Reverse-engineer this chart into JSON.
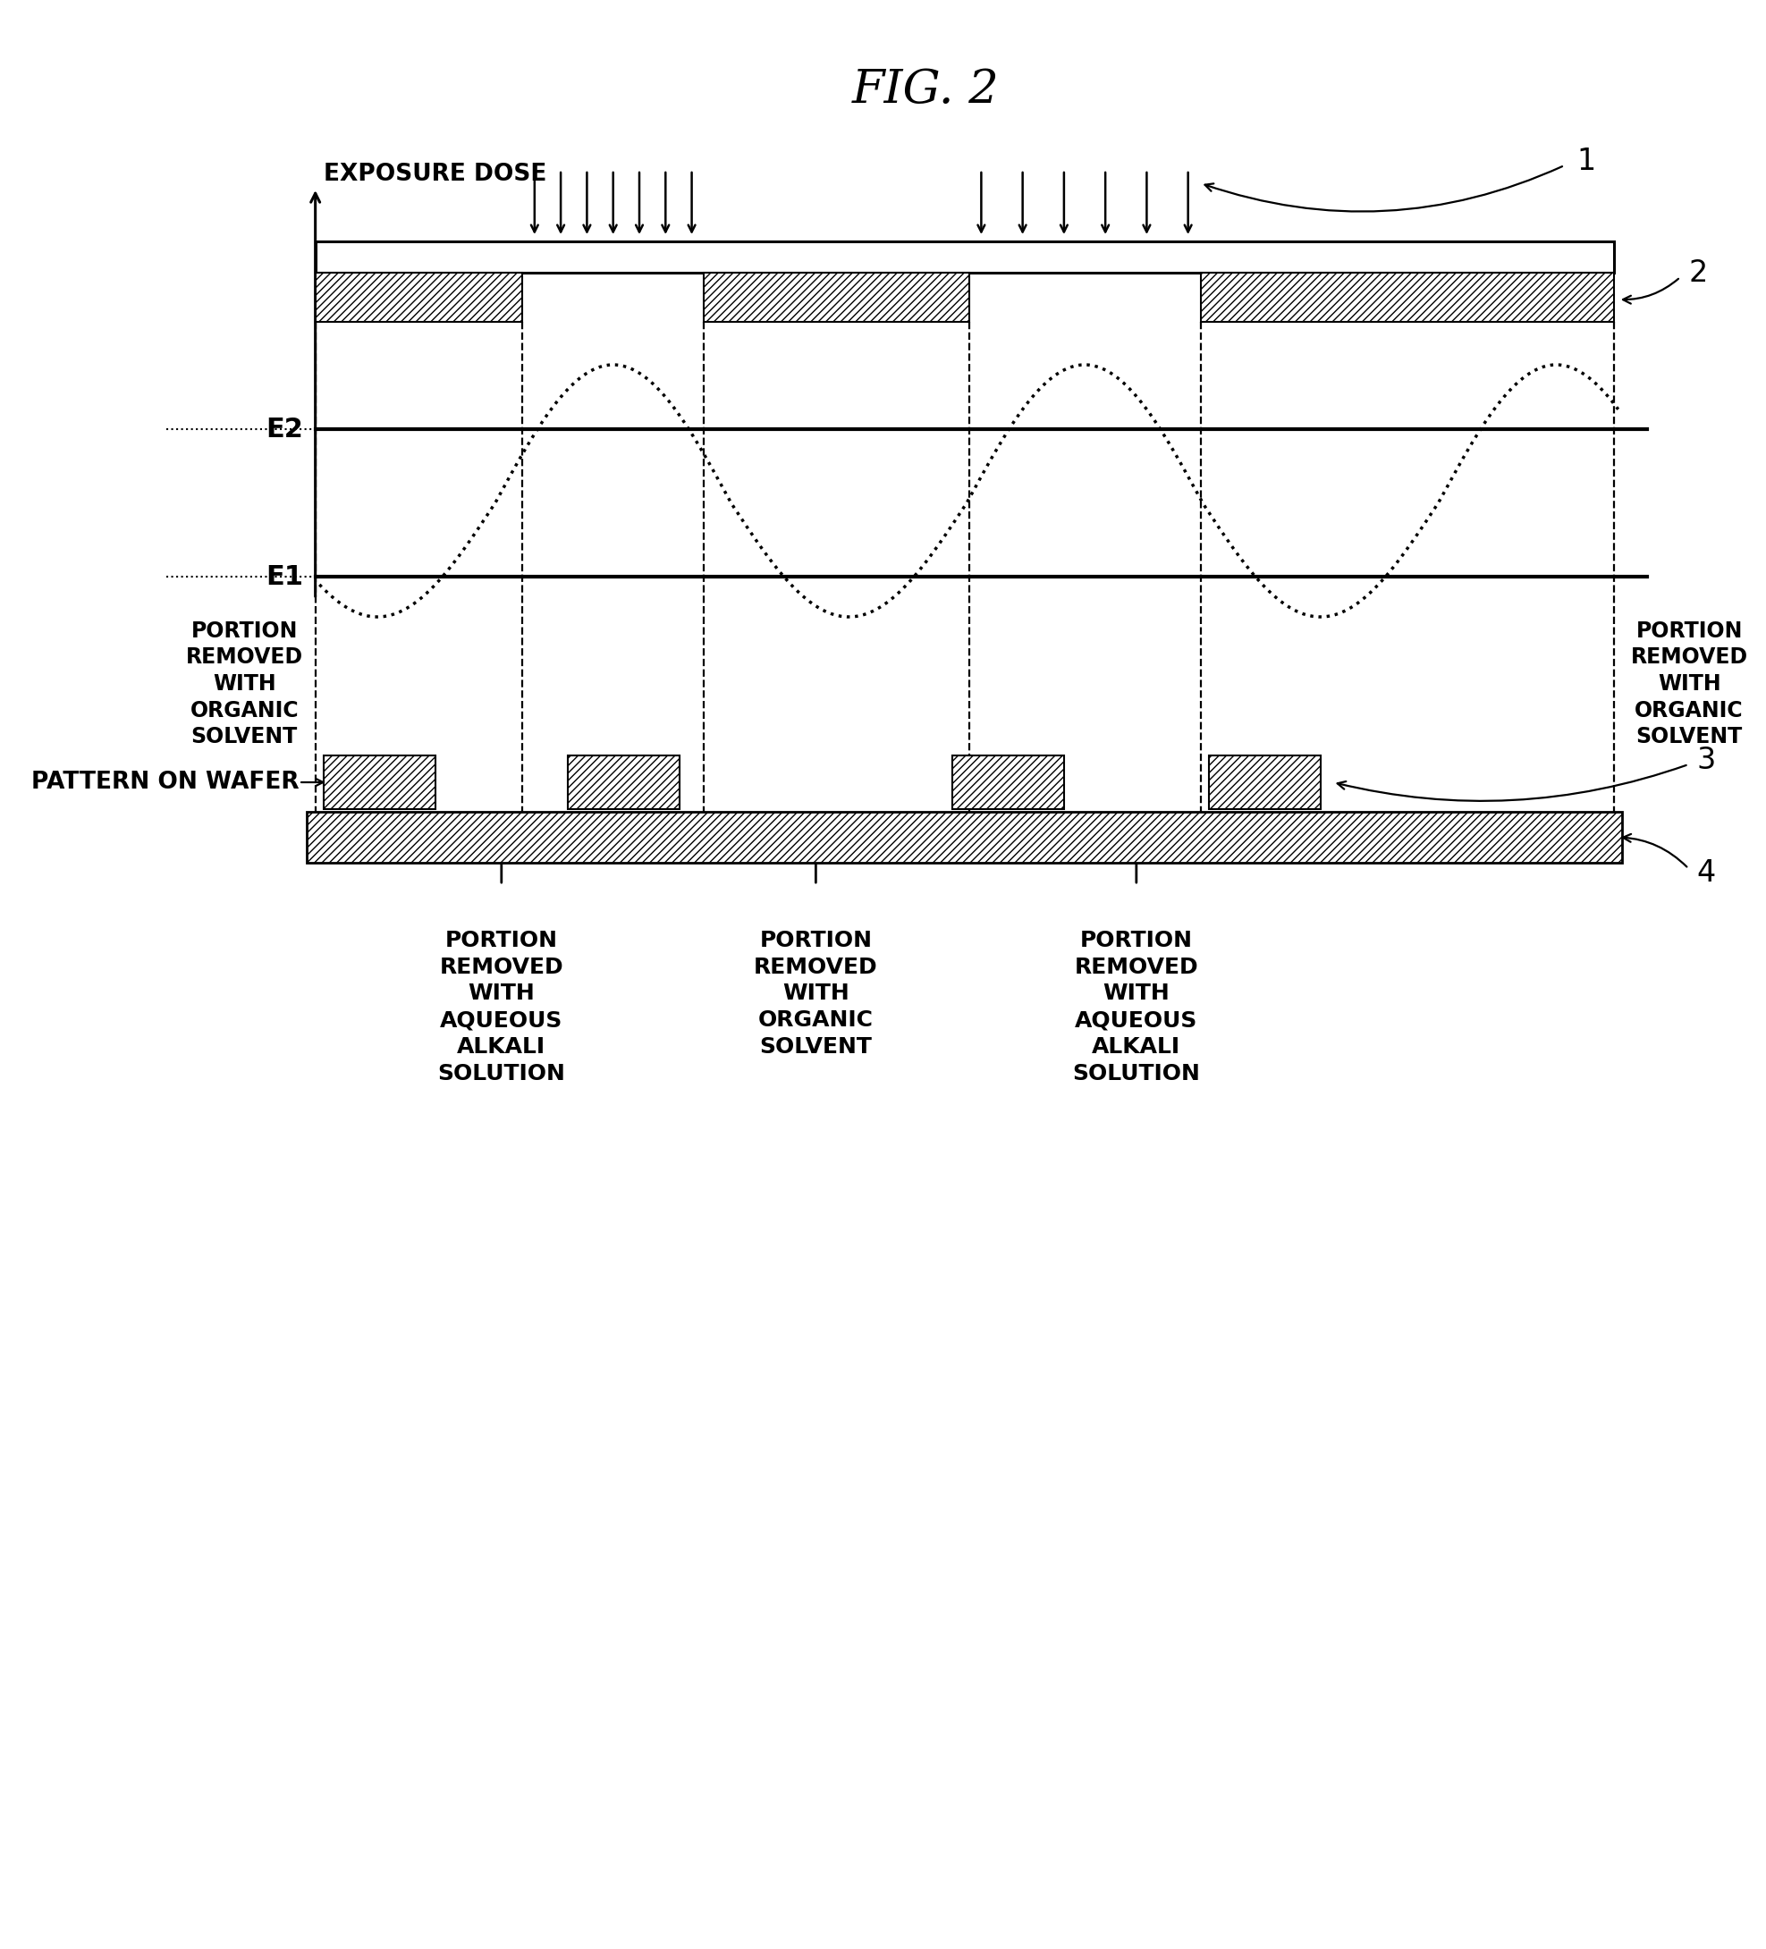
{
  "title": "FIG. 2",
  "title_fontsize": 38,
  "title_style": "italic",
  "bg_color": "#ffffff",
  "E2_label": "E2",
  "E1_label": "E1",
  "exposure_dose_label": "EXPOSURE DOSE",
  "label_organic_left": "PORTION\nREMOVED\nWITH\nORGANIC\nSOLVENT",
  "label_organic_right": "PORTION\nREMOVED\nWITH\nORGANIC\nSOLVENT",
  "label_aqueous1": "PORTION\nREMOVED\nWITH\nAQUEOUS\nALKALI\nSOLUTION",
  "label_organic_bot": "PORTION\nREMOVED\nWITH\nORGANIC\nSOLVENT",
  "label_aqueous2": "PORTION\nREMOVED\nWITH\nAQUEOUS\nALKALI\nSOLUTION",
  "pattern_label": "PATTERN ON WAFER",
  "ref1": "1",
  "ref2": "2",
  "ref3": "3",
  "ref4": "4"
}
